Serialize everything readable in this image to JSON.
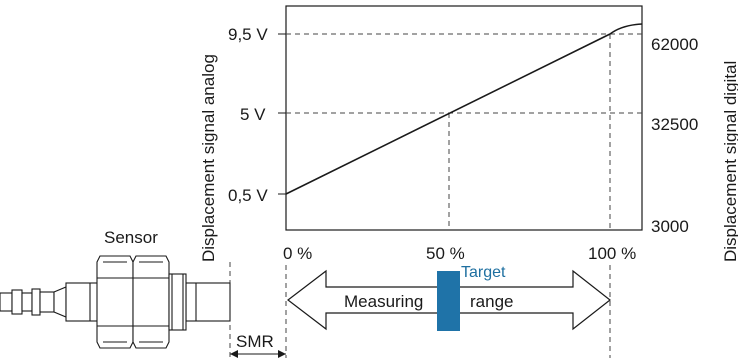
{
  "sensor_label": "Sensor",
  "smr_label": "SMR",
  "y_axis_left_title": "Displacement signal analog",
  "y_axis_right_title": "Displacement signal digital",
  "y_left_ticks": [
    "9,5 V",
    "5 V",
    "0,5 V"
  ],
  "y_right_ticks": [
    "62000",
    "32500",
    "3000"
  ],
  "x_ticks": [
    "0 %",
    "50 %",
    "100 %"
  ],
  "arrow_left_text": "Measuring",
  "arrow_right_text": "range",
  "target_label": "Target",
  "colors": {
    "line": "#1a1a1a",
    "target": "#1f73a8",
    "dash": "#444444"
  },
  "chart_data": {
    "type": "line",
    "x": [
      0,
      100
    ],
    "series": [
      {
        "values": [
          0.5,
          9.5
        ]
      }
    ],
    "x_tick_values": [
      0,
      50,
      100
    ],
    "y_left_tick_values": [
      9.5,
      5,
      0.5
    ],
    "y_right_tick_values": [
      62000,
      32500,
      3000
    ],
    "dashed_guides_at_x": [
      50,
      100
    ]
  }
}
